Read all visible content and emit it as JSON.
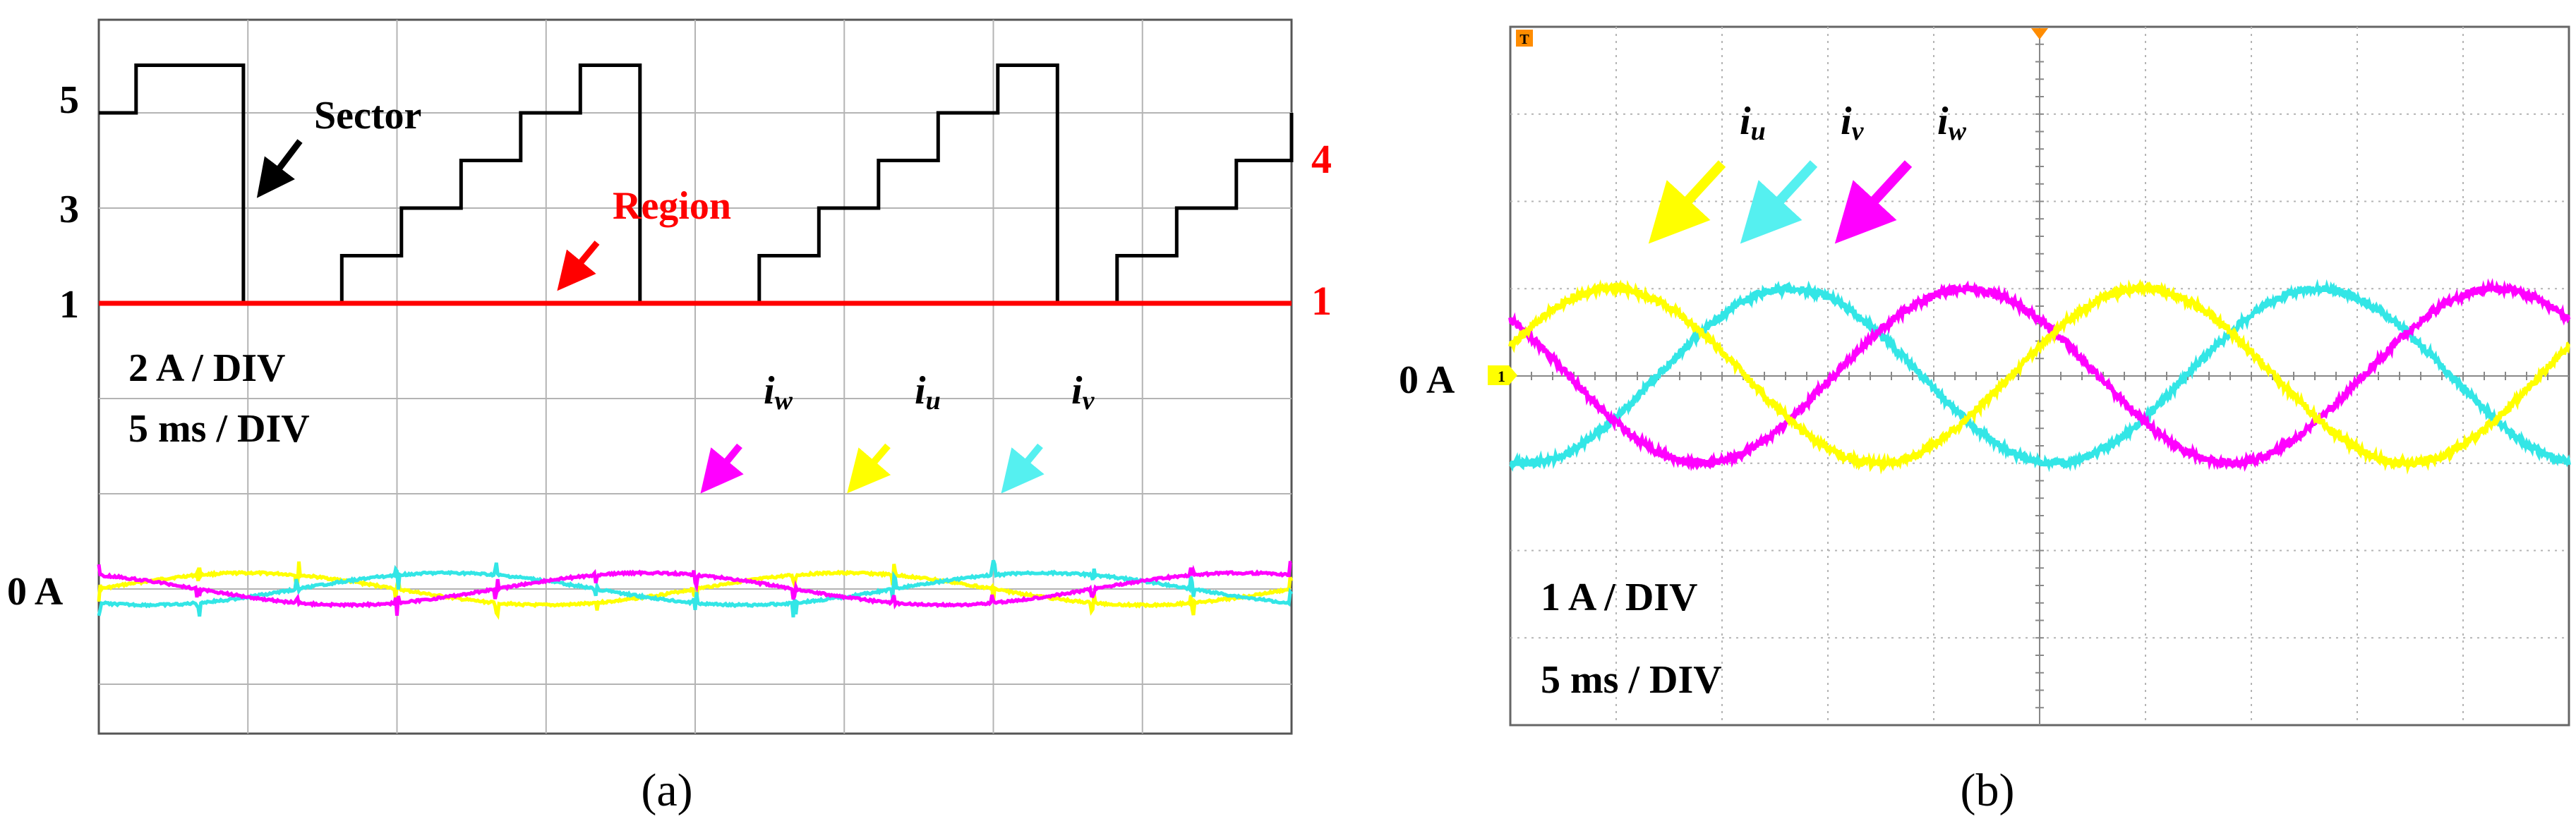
{
  "figure": {
    "panel_a_caption": "(a)",
    "panel_b_caption": "(b)"
  },
  "colors": {
    "iu": "#ffff00",
    "iv": "#33e6e6",
    "iw": "#ff00ff",
    "sector": "#000000",
    "region": "#ff0000",
    "grid": "#b4b4b4",
    "frame": "#666666",
    "marker_ch1": "#ffff00",
    "marker_trigger": "#ff8c00"
  },
  "chart_data": [
    {
      "type": "line",
      "panel": "a",
      "time_div_ms": 5,
      "current_div_A": 2,
      "x_divisions": 8,
      "annotations": {
        "sector": "Sector",
        "region": "Region",
        "scale_current": "2 A / DIV",
        "scale_time": "5 ms / DIV",
        "zero_current": "0 A",
        "iw_main": "i",
        "iw_sub": "w",
        "iu_main": "i",
        "iu_sub": "u",
        "iv_main": "i",
        "iv_sub": "v"
      },
      "sector_axis": {
        "tick_labels": [
          "5",
          "3",
          "1"
        ],
        "ticks": [
          5,
          3,
          1
        ]
      },
      "region_axis": {
        "tick_labels": [
          "4",
          "1"
        ],
        "ticks": [
          4,
          1
        ]
      },
      "sector_series": {
        "name": "Sector",
        "time_ms": [
          0,
          1.25,
          4.85,
          8.15,
          10.15,
          12.15,
          14.15,
          16.15,
          18.15,
          22.15,
          24.15,
          26.15,
          28.15,
          30.15,
          32.15,
          34.15,
          36.15,
          38.15,
          40
        ],
        "values": [
          5,
          6,
          1,
          2,
          3,
          4,
          5,
          6,
          1,
          2,
          3,
          4,
          5,
          6,
          1,
          2,
          3,
          4,
          5
        ]
      },
      "region_series": {
        "name": "Region",
        "time_ms": [
          0,
          40
        ],
        "values": [
          1,
          1
        ]
      },
      "currents": {
        "amplitude_A": 0.7,
        "frequency_hz": 50,
        "series": [
          {
            "name": "iu",
            "phase_deg": 0
          },
          {
            "name": "iv",
            "phase_deg": -120
          },
          {
            "name": "iw",
            "phase_deg": 120
          }
        ]
      }
    },
    {
      "type": "line",
      "panel": "b",
      "time_div_ms": 5,
      "current_div_A": 1,
      "x_divisions": 10,
      "y_divisions": 8,
      "annotations": {
        "scale_current": "1 A / DIV",
        "scale_time": "5 ms / DIV",
        "zero_current": "0 A",
        "ch1_marker": "1",
        "trigger_marker": "T",
        "iu_main": "i",
        "iu_sub": "u",
        "iv_main": "i",
        "iv_sub": "v",
        "iw_main": "i",
        "iw_sub": "w"
      },
      "currents": {
        "amplitude_A": 1.0,
        "frequency_hz": 40,
        "series": [
          {
            "name": "iu",
            "phase_deg": 0
          },
          {
            "name": "iv",
            "phase_deg": -120
          },
          {
            "name": "iw",
            "phase_deg": 120
          }
        ]
      }
    }
  ]
}
